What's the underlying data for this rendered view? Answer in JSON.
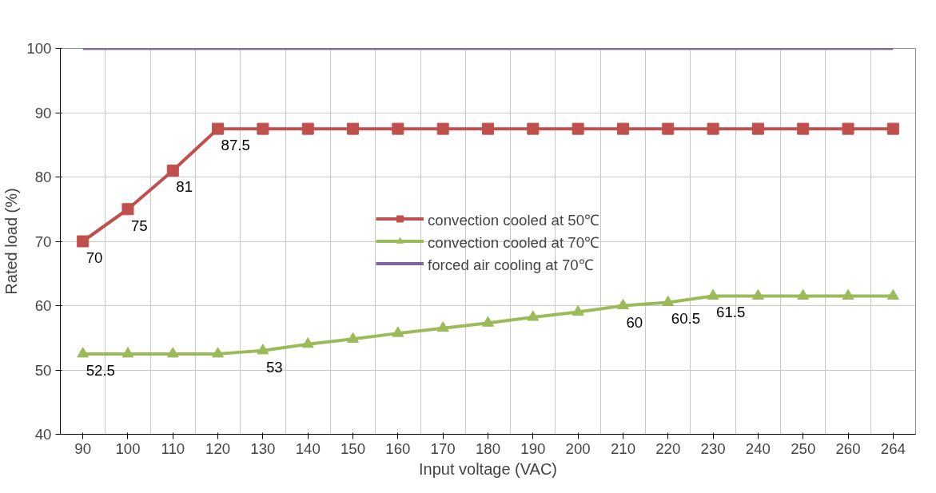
{
  "chart_data": {
    "type": "line",
    "xlabel": "Input voltage (VAC)",
    "ylabel": "Rated load (%)",
    "categories": [
      "90",
      "100",
      "110",
      "120",
      "130",
      "140",
      "150",
      "160",
      "170",
      "180",
      "190",
      "200",
      "210",
      "220",
      "230",
      "240",
      "250",
      "260",
      "264"
    ],
    "ylim": [
      40,
      100
    ],
    "yticks": [
      40,
      50,
      60,
      70,
      80,
      90,
      100
    ],
    "grid": true,
    "legend": "center",
    "series": [
      {
        "name": "convection cooled at 50℃",
        "color": "#c0504d",
        "marker": "square",
        "values": [
          70,
          75,
          81,
          87.5,
          87.5,
          87.5,
          87.5,
          87.5,
          87.5,
          87.5,
          87.5,
          87.5,
          87.5,
          87.5,
          87.5,
          87.5,
          87.5,
          87.5,
          87.5
        ],
        "value_labels": [
          "70",
          "75",
          "81",
          "87.5",
          null,
          null,
          null,
          null,
          null,
          null,
          null,
          null,
          null,
          null,
          null,
          null,
          null,
          null,
          null
        ]
      },
      {
        "name": "convection cooled at 70℃",
        "color": "#9bbb59",
        "marker": "triangle",
        "values": [
          52.5,
          52.5,
          52.5,
          52.5,
          53,
          54,
          54.8,
          55.7,
          56.5,
          57.3,
          58.2,
          59,
          60,
          60.5,
          61.5,
          61.5,
          61.5,
          61.5,
          61.5
        ],
        "value_labels": [
          "52.5",
          null,
          null,
          null,
          "53",
          null,
          null,
          null,
          null,
          null,
          null,
          null,
          "60",
          "60.5",
          "61.5",
          null,
          null,
          null,
          null
        ]
      },
      {
        "name": "forced air cooling at 70℃",
        "color": "#8064a2",
        "marker": "none",
        "values": [
          100,
          100,
          100,
          100,
          100,
          100,
          100,
          100,
          100,
          100,
          100,
          100,
          100,
          100,
          100,
          100,
          100,
          100,
          100
        ]
      }
    ]
  }
}
